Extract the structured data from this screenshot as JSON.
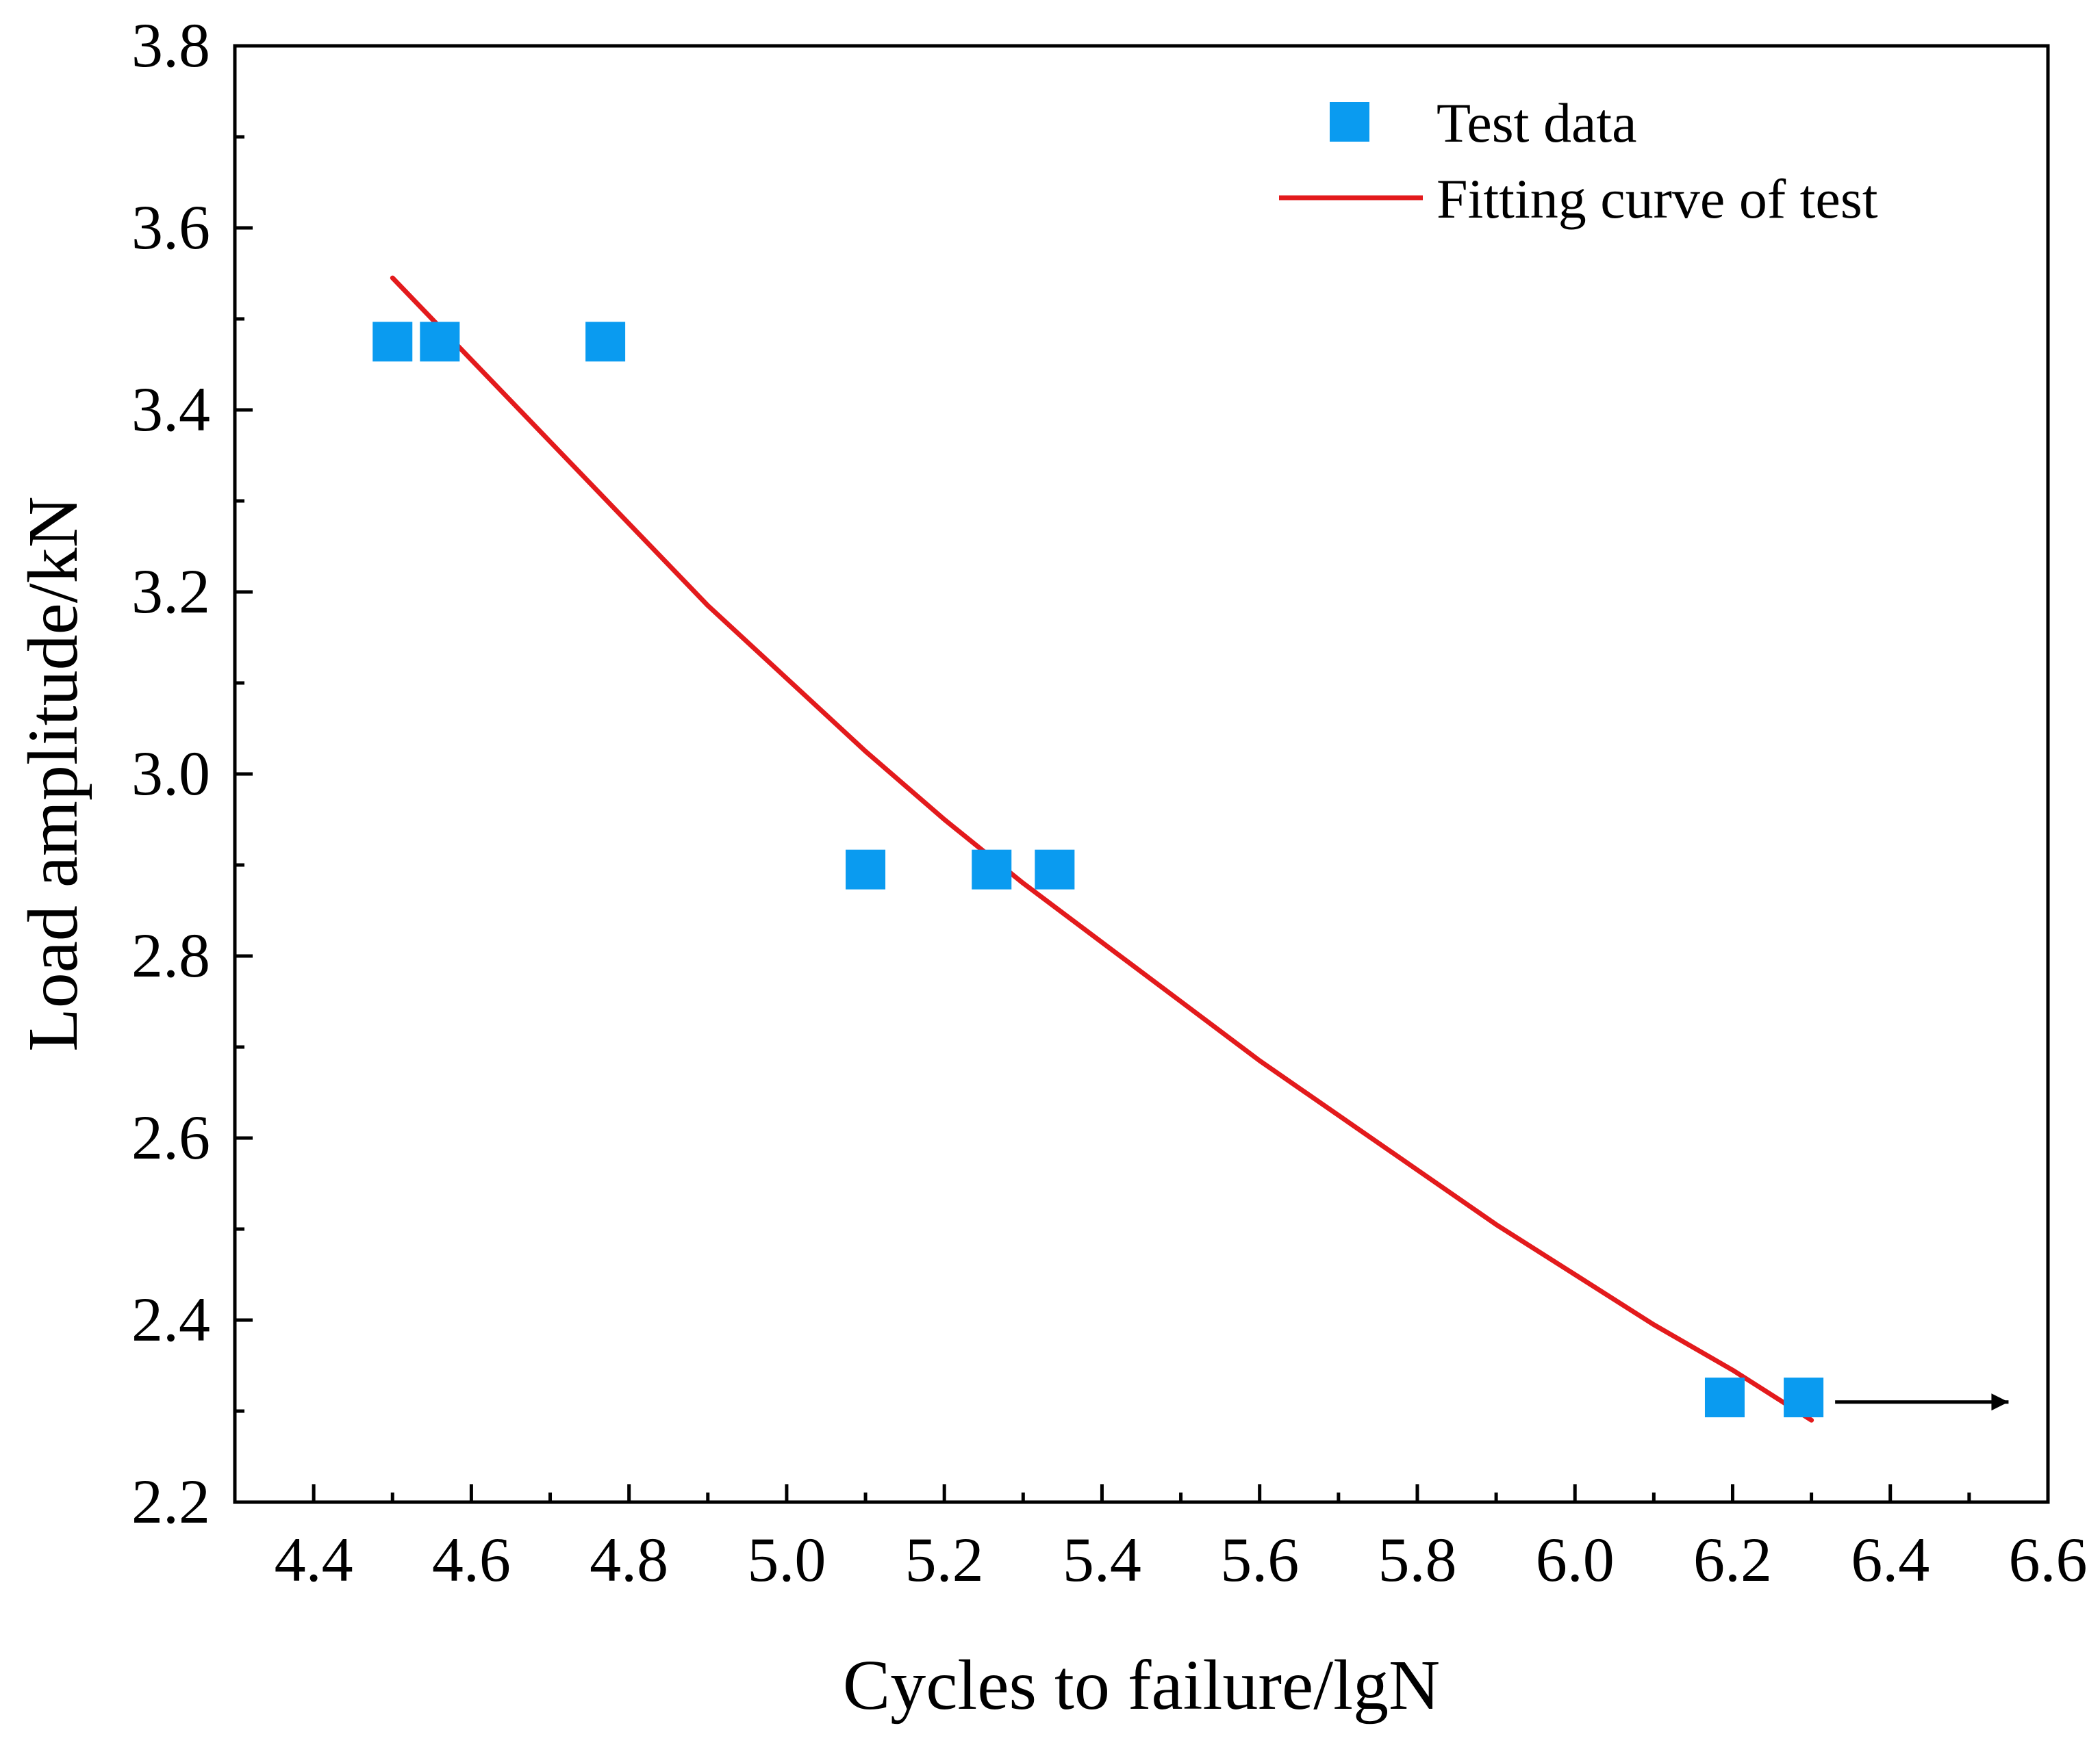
{
  "chart_data": {
    "type": "scatter",
    "title": "",
    "xlabel": "Cycles to failure/lgN",
    "ylabel": "Load amplitude/kN",
    "xlim": [
      4.3,
      6.6
    ],
    "ylim": [
      2.2,
      3.8
    ],
    "x_ticks": [
      4.4,
      4.6,
      4.8,
      5.0,
      5.2,
      5.4,
      5.6,
      5.8,
      6.0,
      6.2,
      6.4,
      6.6
    ],
    "x_tick_labels": [
      "4.4",
      "4.6",
      "4.8",
      "5.0",
      "5.2",
      "5.4",
      "5.6",
      "5.8",
      "6.0",
      "6.2",
      "6.4",
      "6.6"
    ],
    "y_ticks": [
      2.2,
      2.4,
      2.6,
      2.8,
      3.0,
      3.2,
      3.4,
      3.6,
      3.8
    ],
    "y_tick_labels": [
      "2.2",
      "2.4",
      "2.6",
      "2.8",
      "3.0",
      "3.2",
      "3.4",
      "3.6",
      "3.8"
    ],
    "grid": false,
    "legend_position": "top-right",
    "series": [
      {
        "name": "Test data",
        "kind": "scatter",
        "marker": "square",
        "color": "#0A9BF0",
        "points": [
          {
            "x": 4.5,
            "y": 3.475
          },
          {
            "x": 4.56,
            "y": 3.475
          },
          {
            "x": 4.77,
            "y": 3.475
          },
          {
            "x": 5.1,
            "y": 2.895
          },
          {
            "x": 5.26,
            "y": 2.895
          },
          {
            "x": 5.34,
            "y": 2.895
          },
          {
            "x": 6.19,
            "y": 2.315
          },
          {
            "x": 6.29,
            "y": 2.315
          }
        ]
      },
      {
        "name": "Fitting curve of test",
        "kind": "line",
        "color": "#E31A1C",
        "points": [
          {
            "x": 4.5,
            "y": 3.545
          },
          {
            "x": 4.6,
            "y": 3.455
          },
          {
            "x": 4.7,
            "y": 3.365
          },
          {
            "x": 4.8,
            "y": 3.275
          },
          {
            "x": 4.9,
            "y": 3.185
          },
          {
            "x": 5.0,
            "y": 3.105
          },
          {
            "x": 5.1,
            "y": 3.025
          },
          {
            "x": 5.2,
            "y": 2.95
          },
          {
            "x": 5.3,
            "y": 2.88
          },
          {
            "x": 5.4,
            "y": 2.815
          },
          {
            "x": 5.5,
            "y": 2.75
          },
          {
            "x": 5.6,
            "y": 2.685
          },
          {
            "x": 5.7,
            "y": 2.625
          },
          {
            "x": 5.8,
            "y": 2.565
          },
          {
            "x": 5.9,
            "y": 2.505
          },
          {
            "x": 6.0,
            "y": 2.45
          },
          {
            "x": 6.1,
            "y": 2.395
          },
          {
            "x": 6.2,
            "y": 2.345
          },
          {
            "x": 6.3,
            "y": 2.29
          }
        ]
      }
    ],
    "annotations": [
      {
        "type": "arrow",
        "from": {
          "x": 6.33,
          "y": 2.31
        },
        "to": {
          "x": 6.55,
          "y": 2.31
        },
        "color": "#000000"
      }
    ]
  }
}
